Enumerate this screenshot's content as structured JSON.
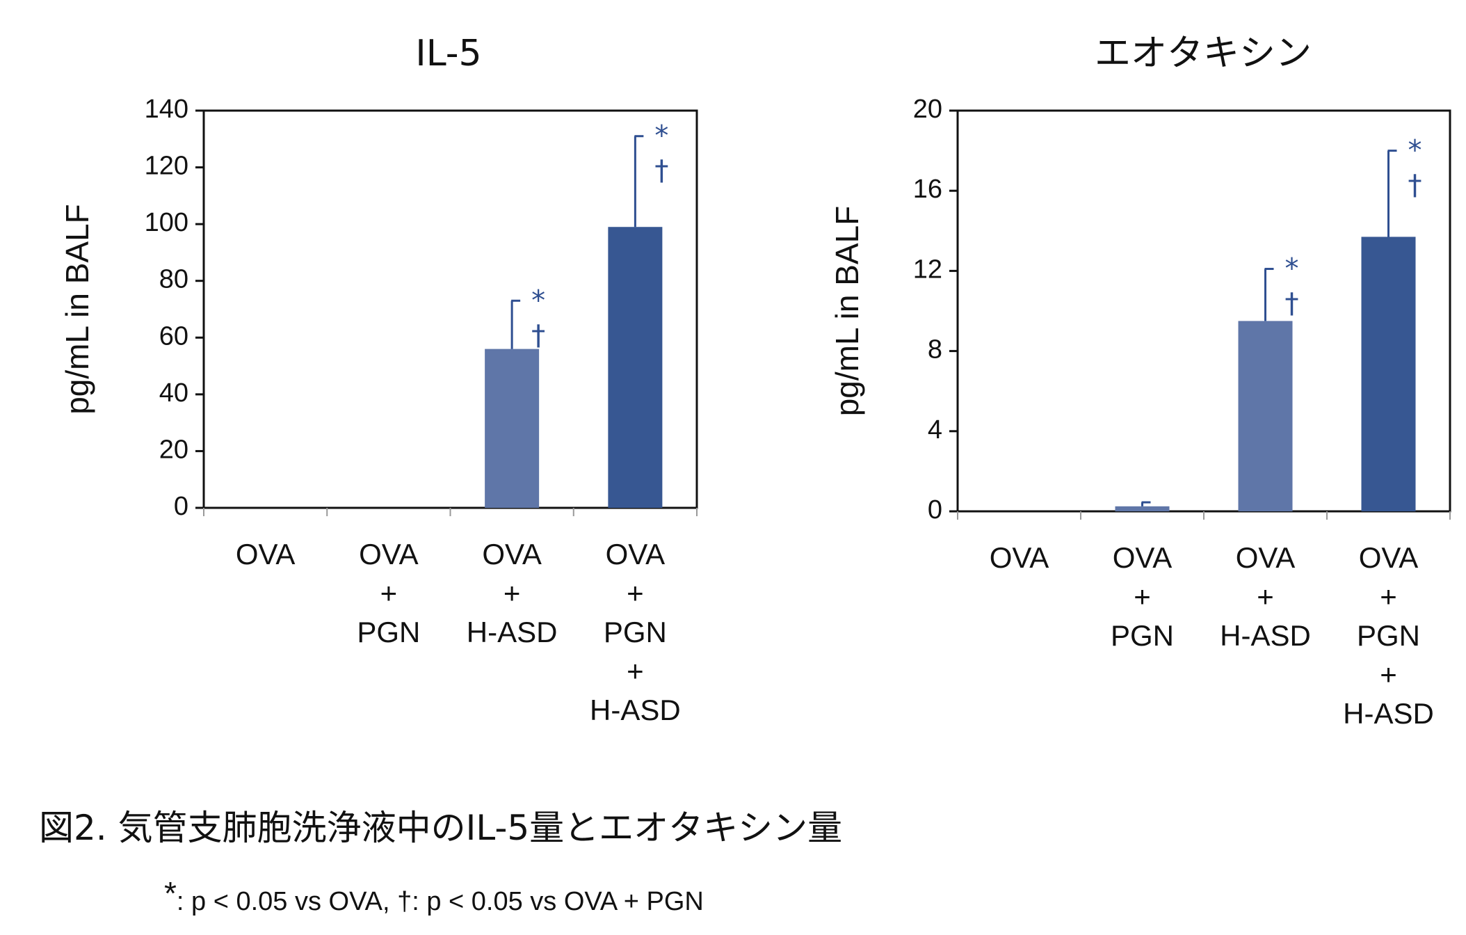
{
  "chart_data": [
    {
      "type": "bar",
      "title": "IL-5",
      "ylabel": "pg/mL in BALF",
      "xlabel": "",
      "ylim": [
        0,
        140
      ],
      "yticks": [
        "0",
        "20",
        "40",
        "60",
        "80",
        "100",
        "120",
        "140"
      ],
      "categories": [
        [
          "OVA"
        ],
        [
          "OVA",
          "+",
          "PGN"
        ],
        [
          "OVA",
          "+",
          "H-ASD"
        ],
        [
          "OVA",
          "+",
          "PGN",
          "+",
          "H-ASD"
        ]
      ],
      "values": [
        0,
        0,
        56,
        99
      ],
      "errors": [
        0,
        0,
        17,
        32
      ],
      "bar_colors": [
        "#5f76a8",
        "#5f76a8",
        "#5f76a8",
        "#375792"
      ],
      "significance": [
        [],
        [],
        [
          "*",
          "†"
        ],
        [
          "*",
          "†"
        ]
      ],
      "grid": false
    },
    {
      "type": "bar",
      "title": "エオタキシン",
      "ylabel": "pg/mL in BALF",
      "xlabel": "",
      "ylim": [
        0,
        20
      ],
      "yticks": [
        "0",
        "4",
        "8",
        "12",
        "16",
        "20"
      ],
      "categories": [
        [
          "OVA"
        ],
        [
          "OVA",
          "+",
          "PGN"
        ],
        [
          "OVA",
          "+",
          "H-ASD"
        ],
        [
          "OVA",
          "+",
          "PGN",
          "+",
          "H-ASD"
        ]
      ],
      "values": [
        0,
        0.25,
        9.5,
        13.7
      ],
      "errors": [
        0,
        0.2,
        2.6,
        4.3
      ],
      "bar_colors": [
        "#5f76a8",
        "#5f76a8",
        "#5f76a8",
        "#375792"
      ],
      "significance": [
        [],
        [],
        [
          "*",
          "†"
        ],
        [
          "*",
          "†"
        ]
      ],
      "grid": false
    }
  ],
  "colors": {
    "accent": "#2f4f91",
    "bar_light": "#5f76a8",
    "bar_dark": "#375792",
    "axis": "#111111"
  },
  "caption": "図2. 気管支肺胞洗浄液中のIL-5量とエオタキシン量",
  "footnote": {
    "star": "*",
    "text": ": p < 0.05 vs OVA, †: p < 0.05 vs OVA + PGN"
  }
}
